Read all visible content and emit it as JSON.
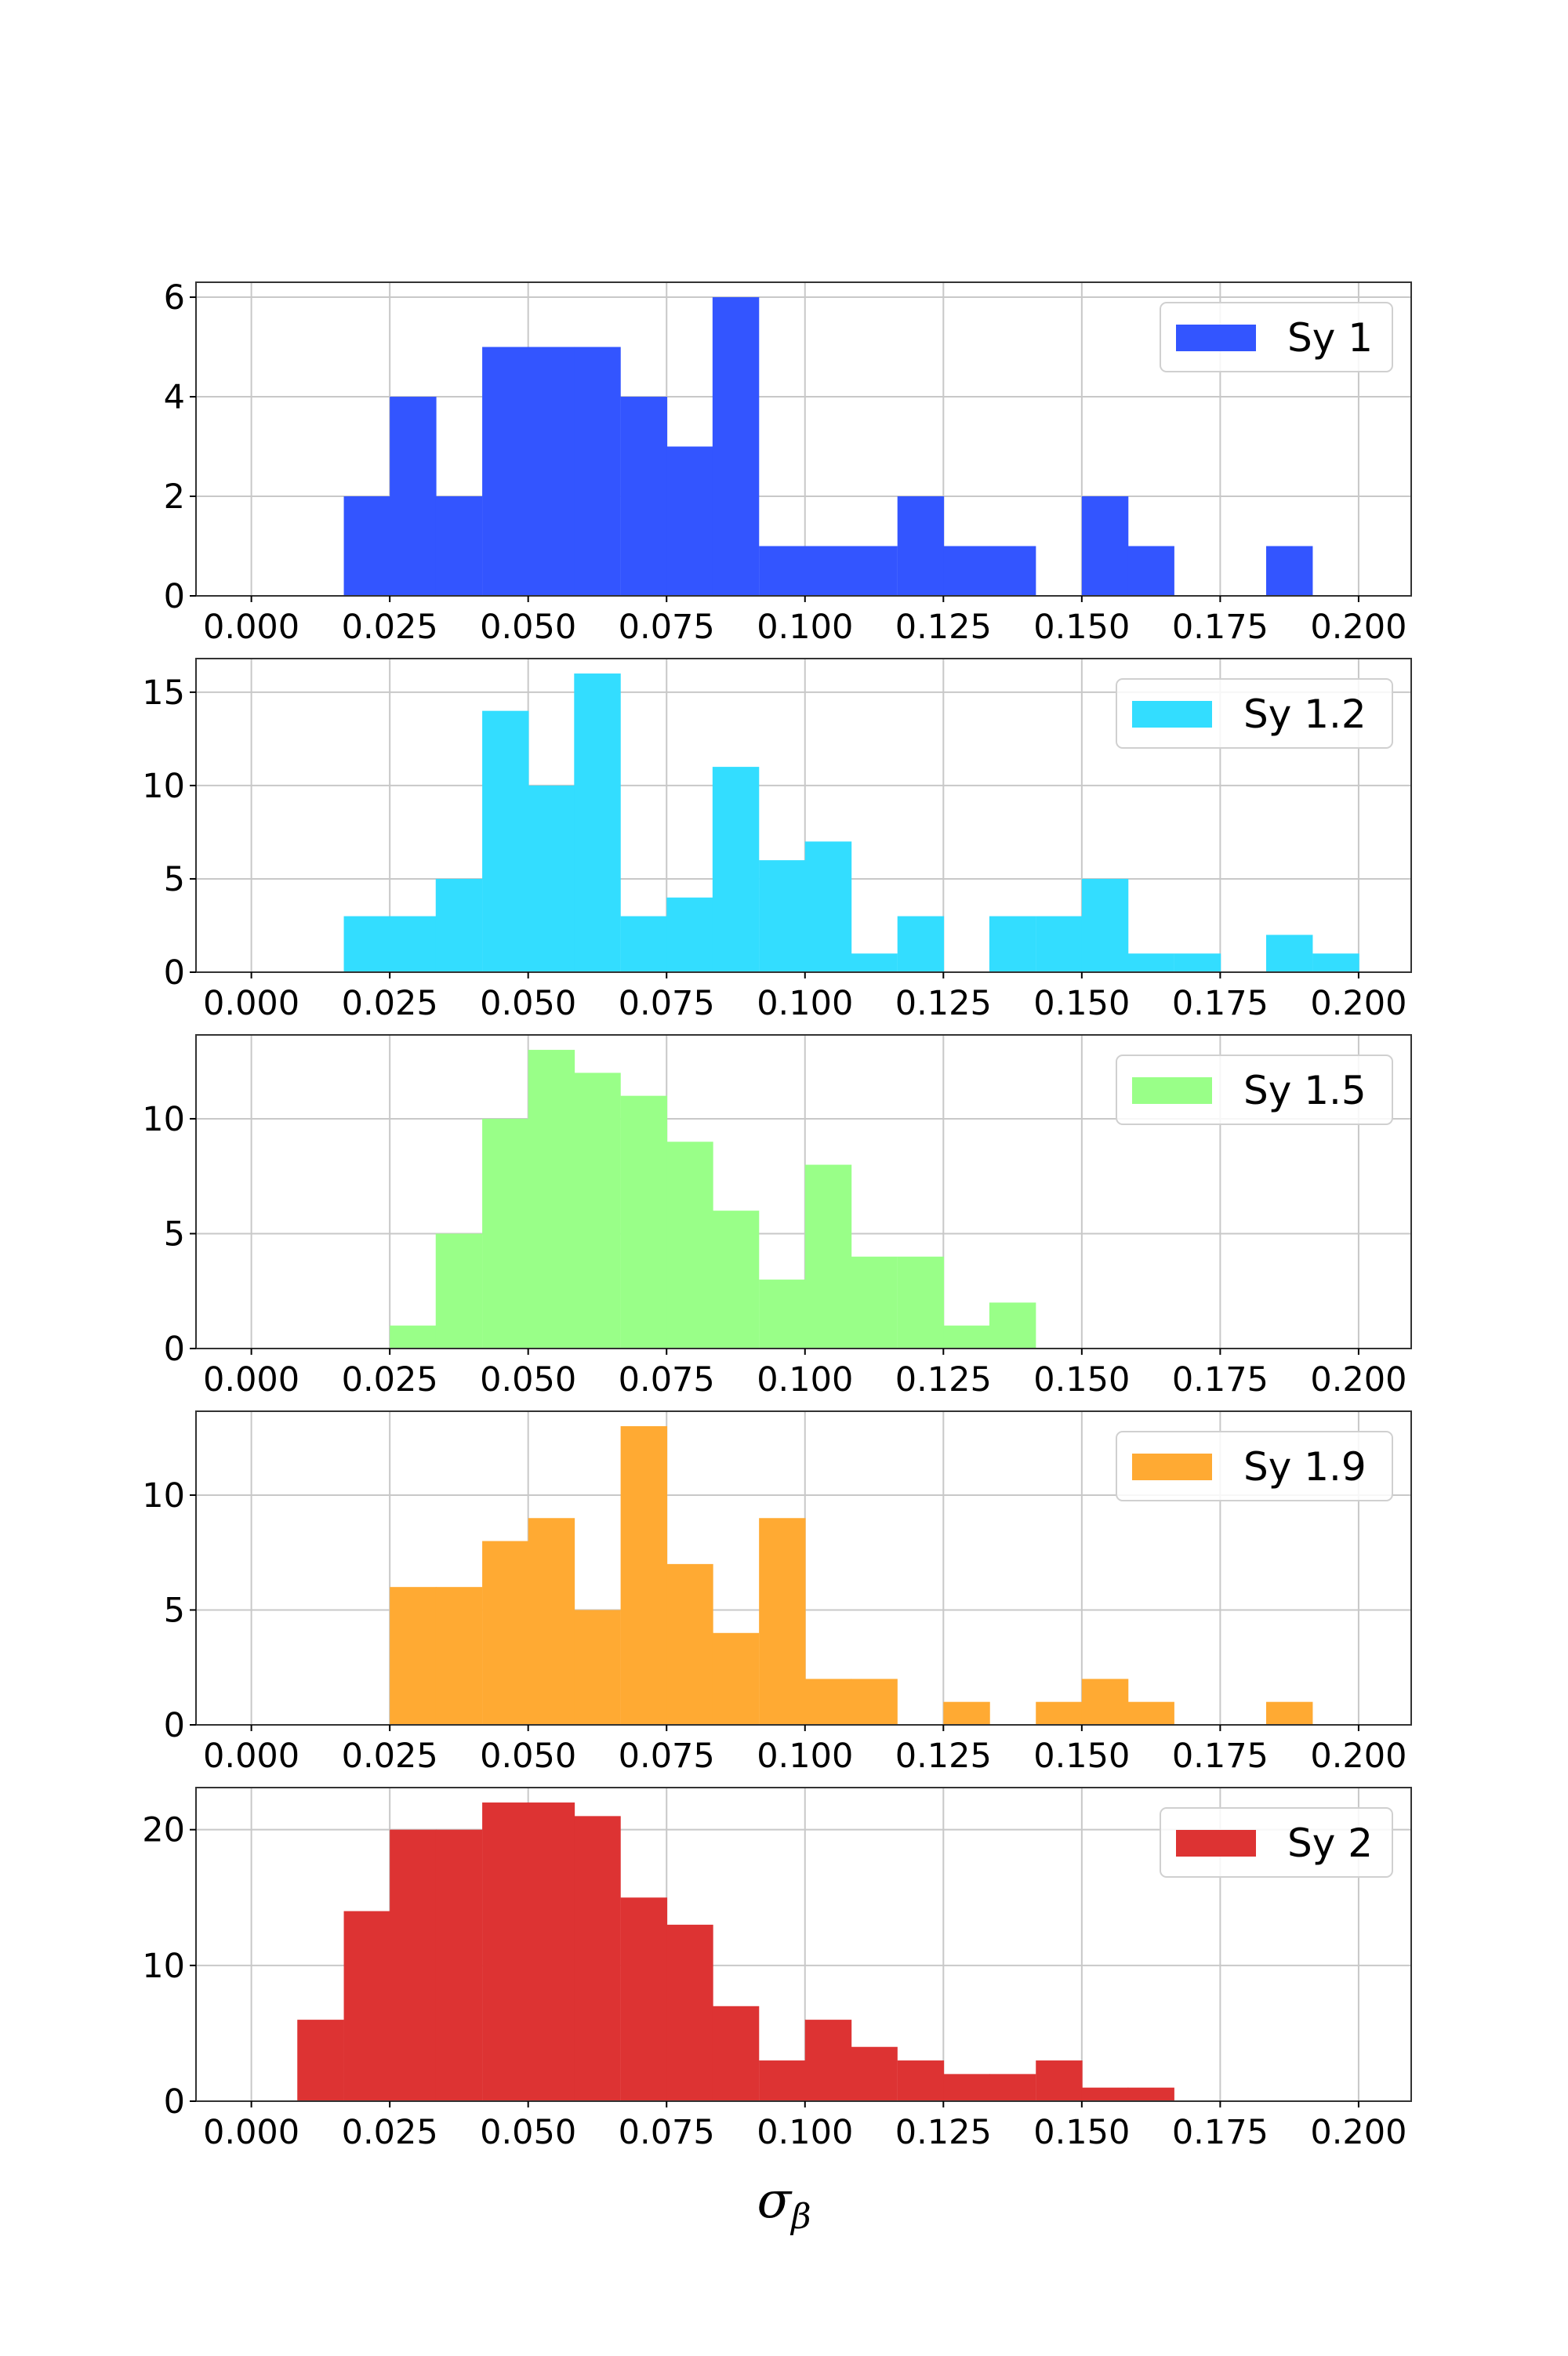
{
  "chart_data": {
    "type": "bar",
    "subtype": "stacked-histogram-panels",
    "xlabel_symbol": "σ",
    "xlabel_subscript": "β",
    "x_ticks": [
      "0.000",
      "0.025",
      "0.050",
      "0.075",
      "0.100",
      "0.125",
      "0.150",
      "0.175",
      "0.200"
    ],
    "x_tick_values": [
      0,
      0.025,
      0.05,
      0.075,
      0.1,
      0.125,
      0.15,
      0.175,
      0.2
    ],
    "xlim": [
      -0.01,
      0.2095
    ],
    "bin_width": 0.008333,
    "grid": true,
    "legend_position": "top-right",
    "panels": [
      {
        "name": "Sy 1",
        "color": "#3355ff",
        "ylim": [
          0,
          6.3
        ],
        "y_ticks": [
          0,
          2,
          4,
          6
        ],
        "bins": [
          {
            "x0": 0.0167,
            "count": 2
          },
          {
            "x0": 0.025,
            "count": 4
          },
          {
            "x0": 0.0333,
            "count": 2
          },
          {
            "x0": 0.0417,
            "count": 5
          },
          {
            "x0": 0.05,
            "count": 5
          },
          {
            "x0": 0.0583,
            "count": 5
          },
          {
            "x0": 0.0667,
            "count": 4
          },
          {
            "x0": 0.075,
            "count": 3
          },
          {
            "x0": 0.0833,
            "count": 6
          },
          {
            "x0": 0.0917,
            "count": 1
          },
          {
            "x0": 0.1,
            "count": 1
          },
          {
            "x0": 0.1083,
            "count": 1
          },
          {
            "x0": 0.1167,
            "count": 2
          },
          {
            "x0": 0.125,
            "count": 1
          },
          {
            "x0": 0.1333,
            "count": 1
          },
          {
            "x0": 0.15,
            "count": 2
          },
          {
            "x0": 0.1583,
            "count": 1
          },
          {
            "x0": 0.1833,
            "count": 1
          }
        ]
      },
      {
        "name": "Sy 1.2",
        "color": "#33ddff",
        "ylim": [
          0,
          16.8
        ],
        "y_ticks": [
          0,
          5,
          10,
          15
        ],
        "bins": [
          {
            "x0": 0.0167,
            "count": 3
          },
          {
            "x0": 0.025,
            "count": 3
          },
          {
            "x0": 0.0333,
            "count": 5
          },
          {
            "x0": 0.0417,
            "count": 14
          },
          {
            "x0": 0.05,
            "count": 10
          },
          {
            "x0": 0.0583,
            "count": 16
          },
          {
            "x0": 0.0667,
            "count": 3
          },
          {
            "x0": 0.075,
            "count": 4
          },
          {
            "x0": 0.0833,
            "count": 11
          },
          {
            "x0": 0.0917,
            "count": 6
          },
          {
            "x0": 0.1,
            "count": 7
          },
          {
            "x0": 0.1083,
            "count": 1
          },
          {
            "x0": 0.1167,
            "count": 3
          },
          {
            "x0": 0.1333,
            "count": 3
          },
          {
            "x0": 0.1417,
            "count": 3
          },
          {
            "x0": 0.15,
            "count": 5
          },
          {
            "x0": 0.1583,
            "count": 1
          },
          {
            "x0": 0.1667,
            "count": 1
          },
          {
            "x0": 0.1833,
            "count": 2
          },
          {
            "x0": 0.1917,
            "count": 1
          }
        ]
      },
      {
        "name": "Sy 1.5",
        "color": "#99ff88",
        "ylim": [
          0,
          13.65
        ],
        "y_ticks": [
          0,
          5,
          10
        ],
        "bins": [
          {
            "x0": 0.025,
            "count": 1
          },
          {
            "x0": 0.0333,
            "count": 5
          },
          {
            "x0": 0.0417,
            "count": 10
          },
          {
            "x0": 0.05,
            "count": 13
          },
          {
            "x0": 0.0583,
            "count": 12
          },
          {
            "x0": 0.0667,
            "count": 11
          },
          {
            "x0": 0.075,
            "count": 9
          },
          {
            "x0": 0.0833,
            "count": 6
          },
          {
            "x0": 0.0917,
            "count": 3
          },
          {
            "x0": 0.1,
            "count": 8
          },
          {
            "x0": 0.1083,
            "count": 4
          },
          {
            "x0": 0.1167,
            "count": 4
          },
          {
            "x0": 0.125,
            "count": 1
          },
          {
            "x0": 0.1333,
            "count": 2
          }
        ]
      },
      {
        "name": "Sy 1.9",
        "color": "#ffaa33",
        "ylim": [
          0,
          13.65
        ],
        "y_ticks": [
          0,
          5,
          10
        ],
        "bins": [
          {
            "x0": 0.025,
            "count": 6
          },
          {
            "x0": 0.0333,
            "count": 6
          },
          {
            "x0": 0.0417,
            "count": 8
          },
          {
            "x0": 0.05,
            "count": 9
          },
          {
            "x0": 0.0583,
            "count": 5
          },
          {
            "x0": 0.0667,
            "count": 13
          },
          {
            "x0": 0.075,
            "count": 7
          },
          {
            "x0": 0.0833,
            "count": 4
          },
          {
            "x0": 0.0917,
            "count": 9
          },
          {
            "x0": 0.1,
            "count": 2
          },
          {
            "x0": 0.1083,
            "count": 2
          },
          {
            "x0": 0.125,
            "count": 1
          },
          {
            "x0": 0.1417,
            "count": 1
          },
          {
            "x0": 0.15,
            "count": 2
          },
          {
            "x0": 0.1583,
            "count": 1
          },
          {
            "x0": 0.1833,
            "count": 1
          }
        ]
      },
      {
        "name": "Sy 2",
        "color": "#dd3333",
        "ylim": [
          0,
          23.1
        ],
        "y_ticks": [
          0,
          10,
          20
        ],
        "bins": [
          {
            "x0": 0.0083,
            "count": 6
          },
          {
            "x0": 0.0167,
            "count": 14
          },
          {
            "x0": 0.025,
            "count": 20
          },
          {
            "x0": 0.0333,
            "count": 20
          },
          {
            "x0": 0.0417,
            "count": 22
          },
          {
            "x0": 0.05,
            "count": 22
          },
          {
            "x0": 0.0583,
            "count": 21
          },
          {
            "x0": 0.0667,
            "count": 15
          },
          {
            "x0": 0.075,
            "count": 13
          },
          {
            "x0": 0.0833,
            "count": 7
          },
          {
            "x0": 0.0917,
            "count": 3
          },
          {
            "x0": 0.1,
            "count": 6
          },
          {
            "x0": 0.1083,
            "count": 4
          },
          {
            "x0": 0.1167,
            "count": 3
          },
          {
            "x0": 0.125,
            "count": 2
          },
          {
            "x0": 0.1333,
            "count": 2
          },
          {
            "x0": 0.1417,
            "count": 3
          },
          {
            "x0": 0.15,
            "count": 1
          },
          {
            "x0": 0.1583,
            "count": 1
          }
        ]
      }
    ]
  }
}
